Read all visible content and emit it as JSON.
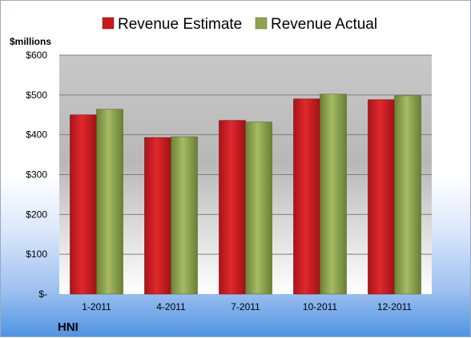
{
  "chart_data": {
    "type": "bar",
    "unit_label": "$millions",
    "company": "HNI",
    "categories": [
      "1-2011",
      "4-2011",
      "7-2011",
      "10-2011",
      "12-2011"
    ],
    "series": [
      {
        "name": "Revenue Estimate",
        "color": "#c8191d",
        "values": [
          450,
          393,
          436,
          490,
          488
        ]
      },
      {
        "name": "Revenue Actual",
        "color": "#8da24e",
        "values": [
          464,
          395,
          432,
          502,
          498
        ]
      }
    ],
    "ylim": [
      0,
      600
    ],
    "yticks": [
      {
        "value": 600,
        "label": "$600"
      },
      {
        "value": 500,
        "label": "$500"
      },
      {
        "value": 400,
        "label": "$400"
      },
      {
        "value": 300,
        "label": "$300"
      },
      {
        "value": 200,
        "label": "$200"
      },
      {
        "value": 100,
        "label": "$100"
      },
      {
        "value": 0,
        "label": "$-"
      }
    ],
    "legend_position": "top",
    "grid": true
  }
}
